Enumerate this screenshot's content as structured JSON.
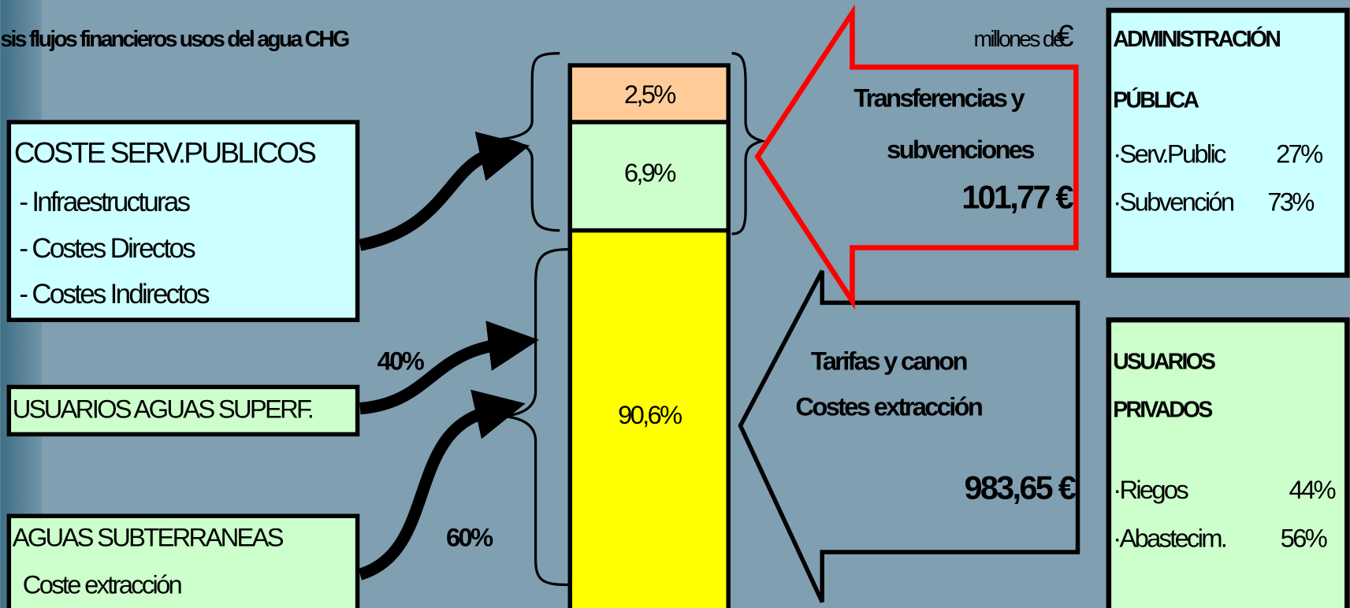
{
  "title": "sis flujos financieros usos del agua CHG",
  "units": {
    "label": "millones de",
    "symbol": "€"
  },
  "cost_box": {
    "title": "COSTE SERV.PUBLICOS",
    "items": [
      "- Infraestructuras",
      "- Costes Directos",
      "- Costes Indirectos"
    ]
  },
  "surface_box": {
    "title": "USUARIOS AGUAS SUPERF."
  },
  "ground_box": {
    "title": "AGUAS SUBTERRANEAS",
    "subtitle": "Coste extracción"
  },
  "arrow_labels": {
    "surface": "40%",
    "ground": "60%"
  },
  "bar": {
    "segments": [
      "2,5%",
      "6,9%",
      "90,6%"
    ]
  },
  "transfer_arrow": {
    "lines": [
      "Transferencias y",
      "subvenciones"
    ],
    "amount": "101,77 €"
  },
  "tariff_arrow": {
    "lines": [
      "Tarifas y canon",
      "Costes extracción"
    ],
    "amount": "983,65 €"
  },
  "public_box": {
    "title": [
      "ADMINISTRACIÓN",
      "PÚBLICA"
    ],
    "items": [
      {
        "label": "·Serv.Public",
        "value": "27%"
      },
      {
        "label": "·Subvención",
        "value": "73%"
      }
    ]
  },
  "private_box": {
    "title": [
      "USUARIOS",
      "PRIVADOS"
    ],
    "items": [
      {
        "label": "·Riegos",
        "value": "44%"
      },
      {
        "label": "·Abastecim.",
        "value": "56%"
      }
    ]
  }
}
